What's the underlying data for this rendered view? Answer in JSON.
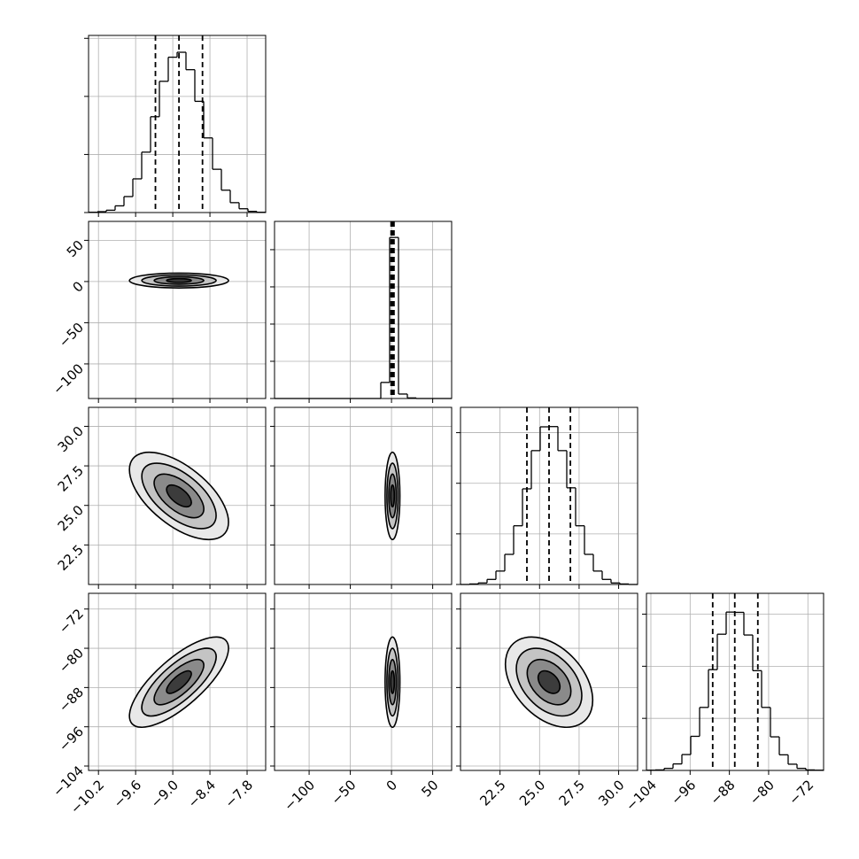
{
  "chart_data": {
    "type": "corner",
    "grid": true,
    "color": "#000000",
    "levels": [
      0.5,
      1,
      1.5,
      2
    ],
    "level_fills": [
      "#3c3c3c",
      "#8a8a8a",
      "#c4c4c4",
      "#e8e8e8"
    ],
    "params": [
      {
        "lim": [
          -10.36,
          -7.5
        ],
        "mean": -8.9,
        "sd": 0.4,
        "ticks": [
          {
            "value": -10.2,
            "label": "−10.2"
          },
          {
            "value": -9.6,
            "label": "−9.6"
          },
          {
            "value": -9.0,
            "label": "−9.0"
          },
          {
            "value": -8.4,
            "label": "−8.4"
          },
          {
            "value": -7.8,
            "label": "−7.8"
          }
        ],
        "quantiles": [
          -9.28,
          -8.9,
          -8.52
        ],
        "hist": {
          "bins": [
            -10.36,
            -10.217,
            -10.074,
            -9.931,
            -9.788,
            -9.645,
            -9.502,
            -9.359,
            -9.216,
            -9.073,
            -8.93,
            -8.787,
            -8.644,
            -8.501,
            -8.358,
            -8.215,
            -8.072,
            -7.929,
            -7.786,
            -7.643,
            -7.5
          ],
          "counts": [
            1,
            3,
            8,
            23,
            55,
            116,
            208,
            330,
            452,
            535,
            552,
            492,
            383,
            257,
            149,
            77,
            34,
            13,
            4,
            1
          ],
          "ylim": [
            0,
            610
          ],
          "yticks": [
            0,
            200,
            400,
            600
          ]
        }
      },
      {
        "lim": [
          -142,
          73
        ],
        "mean": 1.2,
        "sd": 4.5,
        "ticks": [
          {
            "value": -100,
            "label": "−100"
          },
          {
            "value": -50,
            "label": "−50"
          },
          0,
          50
        ],
        "quantiles": [
          -0.5,
          1.2,
          3.0
        ],
        "hist": {
          "bins": [
            -142,
            -131.25,
            -120.5,
            -109.75,
            -99,
            -88.25,
            -77.5,
            -66.75,
            -56,
            -45.25,
            -34.5,
            -23.75,
            -13,
            -2.25,
            8.5,
            19.25,
            30,
            40.75,
            51.5,
            62.25,
            73
          ],
          "counts": [
            0,
            0,
            0,
            0,
            0,
            0,
            0,
            0,
            0,
            0,
            0,
            0,
            54,
            541,
            15,
            2,
            0,
            0,
            0,
            0
          ],
          "ylim": [
            0,
            595
          ],
          "yticks": [
            0,
            125,
            250,
            375,
            500
          ]
        }
      },
      {
        "lim": [
          20.0,
          31.2
        ],
        "mean": 25.6,
        "sd": 1.38,
        "ticks": [
          22.5,
          {
            "value": 25,
            "label": "25.0"
          },
          27.5,
          {
            "value": 30,
            "label": "30.0"
          }
        ],
        "quantiles": [
          24.2,
          25.6,
          26.95
        ],
        "hist": {
          "bins": [
            20,
            20.56,
            21.12,
            21.68,
            22.24,
            22.8,
            23.36,
            23.92,
            24.48,
            25.04,
            25.6,
            26.16,
            26.72,
            27.28,
            27.84,
            28.4,
            28.96,
            29.52,
            30.08,
            30.64,
            31.2
          ],
          "counts": [
            0,
            2,
            6,
            20,
            53,
            119,
            232,
            378,
            529,
            623,
            624,
            529,
            382,
            232,
            119,
            53,
            20,
            6,
            2,
            0
          ],
          "ylim": [
            0,
            700
          ],
          "yticks": [
            0,
            200,
            400,
            600
          ]
        }
      },
      {
        "lim": [
          -104.9,
          -68.8
        ],
        "mean": -86.9,
        "sd": 4.6,
        "ticks": [
          {
            "value": -104,
            "label": "−104"
          },
          {
            "value": -96,
            "label": "−96"
          },
          {
            "value": -88,
            "label": "−88"
          },
          {
            "value": -80,
            "label": "−80"
          },
          {
            "value": -72,
            "label": "−72"
          }
        ],
        "quantiles": [
          -91.4,
          -86.9,
          -82.2
        ],
        "hist": {
          "bins": [
            -104.9,
            -103.095,
            -101.29,
            -99.485,
            -97.68,
            -95.875,
            -94.07,
            -92.265,
            -90.46,
            -88.655,
            -86.85,
            -85.045,
            -83.24,
            -81.435,
            -79.63,
            -77.825,
            -76.02,
            -74.215,
            -72.41,
            -70.605,
            -68.8
          ],
          "counts": [
            1,
            2,
            8,
            25,
            61,
            131,
            242,
            387,
            523,
            608,
            607,
            520,
            383,
            242,
            129,
            60,
            24,
            8,
            2,
            1
          ],
          "ylim": [
            0,
            680
          ],
          "yticks": [
            0,
            200,
            400,
            600
          ]
        }
      }
    ],
    "pairs": [
      {
        "x": 0,
        "y": 1,
        "rho": 0
      },
      {
        "x": 0,
        "y": 2,
        "rho": -0.6
      },
      {
        "x": 1,
        "y": 2,
        "rho": 0
      },
      {
        "x": 0,
        "y": 3,
        "rho": 0.75
      },
      {
        "x": 1,
        "y": 3,
        "rho": 0
      },
      {
        "x": 2,
        "y": 3,
        "rho": -0.4
      }
    ]
  }
}
